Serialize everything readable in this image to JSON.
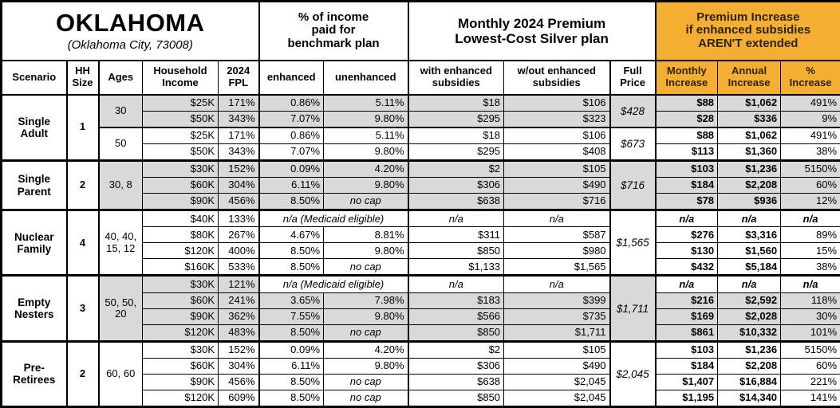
{
  "title": {
    "state": "OKLAHOMA",
    "city": "(Oklahoma City, 73008)"
  },
  "headers": {
    "income_pct": "% of income\npaid for\nbenchmark plan",
    "premium": "Monthly 2024 Premium\nLowest-Cost Silver plan",
    "increase": "Premium Increase\nif enhanced subsidies\nAREN'T extended"
  },
  "columns": {
    "scenario": "Scenario",
    "hh_size": "HH\nSize",
    "ages": "Ages",
    "income": "Household\nIncome",
    "fpl": "2024\nFPL",
    "enhanced": "enhanced",
    "unenhanced": "unenhanced",
    "with_sub": "with enhanced\nsubsidies",
    "wout_sub": "w/out enhanced\nsubsidies",
    "full_price": "Full\nPrice",
    "monthly": "Monthly\nIncrease",
    "annual": "Annual\nIncrease",
    "pct": "%\nIncrease"
  },
  "accent_colors": {
    "highlight_orange": "#F4AF32",
    "row_shade_gray": "#D9D9D9"
  },
  "groups": [
    {
      "scenario": "Single\nAdult",
      "hh_size": "1",
      "subgroups": [
        {
          "ages": "30",
          "full_price": "$428",
          "rows": [
            {
              "income": "$25K",
              "fpl": "171%",
              "enhanced": "0.86%",
              "unenhanced": "5.11%",
              "with_sub": "$18",
              "wout_sub": "$106",
              "monthly": "$88",
              "annual": "$1,062",
              "pct": "491%"
            },
            {
              "income": "$50K",
              "fpl": "343%",
              "enhanced": "7.07%",
              "unenhanced": "9.80%",
              "with_sub": "$295",
              "wout_sub": "$323",
              "monthly": "$28",
              "annual": "$336",
              "pct": "9%"
            }
          ]
        },
        {
          "ages": "50",
          "full_price": "$673",
          "rows": [
            {
              "income": "$25K",
              "fpl": "171%",
              "enhanced": "0.86%",
              "unenhanced": "5.11%",
              "with_sub": "$18",
              "wout_sub": "$106",
              "monthly": "$88",
              "annual": "$1,062",
              "pct": "491%"
            },
            {
              "income": "$50K",
              "fpl": "343%",
              "enhanced": "7.07%",
              "unenhanced": "9.80%",
              "with_sub": "$295",
              "wout_sub": "$408",
              "monthly": "$113",
              "annual": "$1,360",
              "pct": "38%"
            }
          ]
        }
      ]
    },
    {
      "scenario": "Single\nParent",
      "hh_size": "2",
      "subgroups": [
        {
          "ages": "30, 8",
          "full_price": "$716",
          "rows": [
            {
              "income": "$30K",
              "fpl": "152%",
              "enhanced": "0.09%",
              "unenhanced": "4.20%",
              "with_sub": "$2",
              "wout_sub": "$105",
              "monthly": "$103",
              "annual": "$1,236",
              "pct": "5150%"
            },
            {
              "income": "$60K",
              "fpl": "304%",
              "enhanced": "6.11%",
              "unenhanced": "9.80%",
              "with_sub": "$306",
              "wout_sub": "$490",
              "monthly": "$184",
              "annual": "$2,208",
              "pct": "60%"
            },
            {
              "income": "$90K",
              "fpl": "456%",
              "enhanced": "8.50%",
              "unenhanced": "no cap",
              "with_sub": "$638",
              "wout_sub": "$716",
              "monthly": "$78",
              "annual": "$936",
              "pct": "12%"
            }
          ]
        }
      ]
    },
    {
      "scenario": "Nuclear\nFamily",
      "hh_size": "4",
      "subgroups": [
        {
          "ages": "40, 40, 15, 12",
          "full_price": "$1,565",
          "rows": [
            {
              "income": "$40K",
              "fpl": "133%",
              "medicaid": "n/a (Medicaid eligible)",
              "with_sub": "n/a",
              "wout_sub": "n/a",
              "monthly": "n/a",
              "annual": "n/a",
              "pct": "n/a"
            },
            {
              "income": "$80K",
              "fpl": "267%",
              "enhanced": "4.67%",
              "unenhanced": "8.81%",
              "with_sub": "$311",
              "wout_sub": "$587",
              "monthly": "$276",
              "annual": "$3,316",
              "pct": "89%"
            },
            {
              "income": "$120K",
              "fpl": "400%",
              "enhanced": "8.50%",
              "unenhanced": "9.80%",
              "with_sub": "$850",
              "wout_sub": "$980",
              "monthly": "$130",
              "annual": "$1,560",
              "pct": "15%"
            },
            {
              "income": "$160K",
              "fpl": "533%",
              "enhanced": "8.50%",
              "unenhanced": "no cap",
              "with_sub": "$1,133",
              "wout_sub": "$1,565",
              "monthly": "$432",
              "annual": "$5,184",
              "pct": "38%"
            }
          ]
        }
      ]
    },
    {
      "scenario": "Empty\nNesters",
      "hh_size": "3",
      "subgroups": [
        {
          "ages": "50, 50, 20",
          "full_price": "$1,711",
          "rows": [
            {
              "income": "$30K",
              "fpl": "121%",
              "medicaid": "n/a (Medicaid eligible)",
              "with_sub": "n/a",
              "wout_sub": "n/a",
              "monthly": "n/a",
              "annual": "n/a",
              "pct": "n/a"
            },
            {
              "income": "$60K",
              "fpl": "241%",
              "enhanced": "3.65%",
              "unenhanced": "7.98%",
              "with_sub": "$183",
              "wout_sub": "$399",
              "monthly": "$216",
              "annual": "$2,592",
              "pct": "118%"
            },
            {
              "income": "$90K",
              "fpl": "362%",
              "enhanced": "7.55%",
              "unenhanced": "9.80%",
              "with_sub": "$566",
              "wout_sub": "$735",
              "monthly": "$169",
              "annual": "$2,028",
              "pct": "30%"
            },
            {
              "income": "$120K",
              "fpl": "483%",
              "enhanced": "8.50%",
              "unenhanced": "no cap",
              "with_sub": "$850",
              "wout_sub": "$1,711",
              "monthly": "$861",
              "annual": "$10,332",
              "pct": "101%"
            }
          ]
        }
      ]
    },
    {
      "scenario": "Pre-\nRetirees",
      "hh_size": "2",
      "subgroups": [
        {
          "ages": "60, 60",
          "full_price": "$2,045",
          "rows": [
            {
              "income": "$30K",
              "fpl": "152%",
              "enhanced": "0.09%",
              "unenhanced": "4.20%",
              "with_sub": "$2",
              "wout_sub": "$105",
              "monthly": "$103",
              "annual": "$1,236",
              "pct": "5150%"
            },
            {
              "income": "$60K",
              "fpl": "304%",
              "enhanced": "6.11%",
              "unenhanced": "9.80%",
              "with_sub": "$306",
              "wout_sub": "$490",
              "monthly": "$184",
              "annual": "$2,208",
              "pct": "60%"
            },
            {
              "income": "$90K",
              "fpl": "456%",
              "enhanced": "8.50%",
              "unenhanced": "no cap",
              "with_sub": "$638",
              "wout_sub": "$2,045",
              "monthly": "$1,407",
              "annual": "$16,884",
              "pct": "221%"
            },
            {
              "income": "$120K",
              "fpl": "609%",
              "enhanced": "8.50%",
              "unenhanced": "no cap",
              "with_sub": "$850",
              "wout_sub": "$2,045",
              "monthly": "$1,195",
              "annual": "$14,340",
              "pct": "141%"
            }
          ]
        }
      ]
    }
  ]
}
